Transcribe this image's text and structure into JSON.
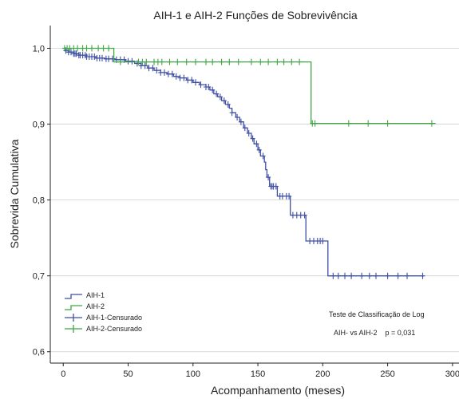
{
  "chart_data": {
    "type": "line",
    "title": "AIH-1 e AIH-2 Funções de Sobrevivência",
    "xlabel": "Acompanhamento (meses)",
    "ylabel": "Sobrevida Cumulativa",
    "xlim": [
      -10,
      305
    ],
    "ylim": [
      0.585,
      1.03
    ],
    "xticks": [
      0,
      50,
      100,
      150,
      200,
      250,
      300
    ],
    "xtick_labels": [
      "0",
      "50",
      "100",
      "150",
      "200",
      "250",
      "300"
    ],
    "yticks": [
      0.6,
      0.7,
      0.8,
      0.9,
      1.0
    ],
    "ytick_labels": [
      "0,6",
      "0,7",
      "0,8",
      "0,9",
      "1,0"
    ],
    "grid": "horizontal",
    "legend_position": "bottom-left",
    "colors": {
      "aih1": "#3f4fa6",
      "aih2": "#3fa845",
      "grid": "#cfcfcf"
    },
    "series": [
      {
        "name": "AIH-1",
        "legend_label": "AIH-1",
        "censored_label": "AIH-1-Censurado",
        "color": "#3f4fa6",
        "steps": [
          [
            0,
            1.0
          ],
          [
            2,
            0.997
          ],
          [
            4,
            0.995
          ],
          [
            8,
            0.993
          ],
          [
            12,
            0.991
          ],
          [
            18,
            0.989
          ],
          [
            25,
            0.987
          ],
          [
            32,
            0.986
          ],
          [
            40,
            0.985
          ],
          [
            48,
            0.983
          ],
          [
            55,
            0.98
          ],
          [
            60,
            0.977
          ],
          [
            65,
            0.974
          ],
          [
            70,
            0.971
          ],
          [
            75,
            0.968
          ],
          [
            80,
            0.966
          ],
          [
            85,
            0.963
          ],
          [
            90,
            0.961
          ],
          [
            95,
            0.958
          ],
          [
            100,
            0.955
          ],
          [
            105,
            0.952
          ],
          [
            110,
            0.949
          ],
          [
            113,
            0.945
          ],
          [
            116,
            0.94
          ],
          [
            119,
            0.936
          ],
          [
            122,
            0.931
          ],
          [
            125,
            0.926
          ],
          [
            128,
            0.921
          ],
          [
            130,
            0.915
          ],
          [
            133,
            0.909
          ],
          [
            136,
            0.903
          ],
          [
            139,
            0.895
          ],
          [
            142,
            0.888
          ],
          [
            145,
            0.881
          ],
          [
            147,
            0.874
          ],
          [
            150,
            0.866
          ],
          [
            152,
            0.858
          ],
          [
            155,
            0.85
          ],
          [
            156,
            0.84
          ],
          [
            157,
            0.83
          ],
          [
            159,
            0.818
          ],
          [
            165,
            0.805
          ],
          [
            175,
            0.78
          ],
          [
            187,
            0.746
          ],
          [
            204,
            0.7
          ],
          [
            278,
            0.7
          ]
        ],
        "censored_x": [
          2,
          4,
          6,
          8,
          9,
          10,
          12,
          13,
          15,
          17,
          18,
          20,
          22,
          24,
          26,
          28,
          30,
          33,
          35,
          38,
          41,
          44,
          47,
          50,
          53,
          57,
          60,
          63,
          66,
          69,
          72,
          75,
          78,
          81,
          84,
          87,
          90,
          93,
          96,
          99,
          102,
          106,
          110,
          112,
          115,
          118,
          121,
          124,
          127,
          130,
          134,
          137,
          140,
          143,
          146,
          149,
          151,
          154,
          158,
          160,
          161,
          162,
          164,
          167,
          169,
          172,
          174,
          177,
          180,
          183,
          186,
          190,
          193,
          196,
          198,
          200,
          208,
          212,
          217,
          222,
          230,
          236,
          241,
          250,
          258,
          265,
          277
        ]
      },
      {
        "name": "AIH-2",
        "legend_label": "AIH-2",
        "censored_label": "AIH-2-Censurado",
        "color": "#3fa845",
        "steps": [
          [
            0,
            1.0
          ],
          [
            39,
            0.982
          ],
          [
            191,
            0.901
          ],
          [
            287,
            0.901
          ]
        ],
        "censored_x": [
          1,
          3,
          5,
          8,
          11,
          15,
          18,
          22,
          27,
          31,
          35,
          44,
          58,
          61,
          64,
          70,
          73,
          76,
          82,
          88,
          95,
          102,
          110,
          115,
          122,
          128,
          135,
          145,
          152,
          158,
          165,
          170,
          176,
          182,
          192,
          194,
          220,
          235,
          250,
          284
        ]
      }
    ],
    "annotation": {
      "line1": "Teste de Classificação de Log",
      "line2": "AIH- vs AIH-2    p = 0,031"
    }
  }
}
